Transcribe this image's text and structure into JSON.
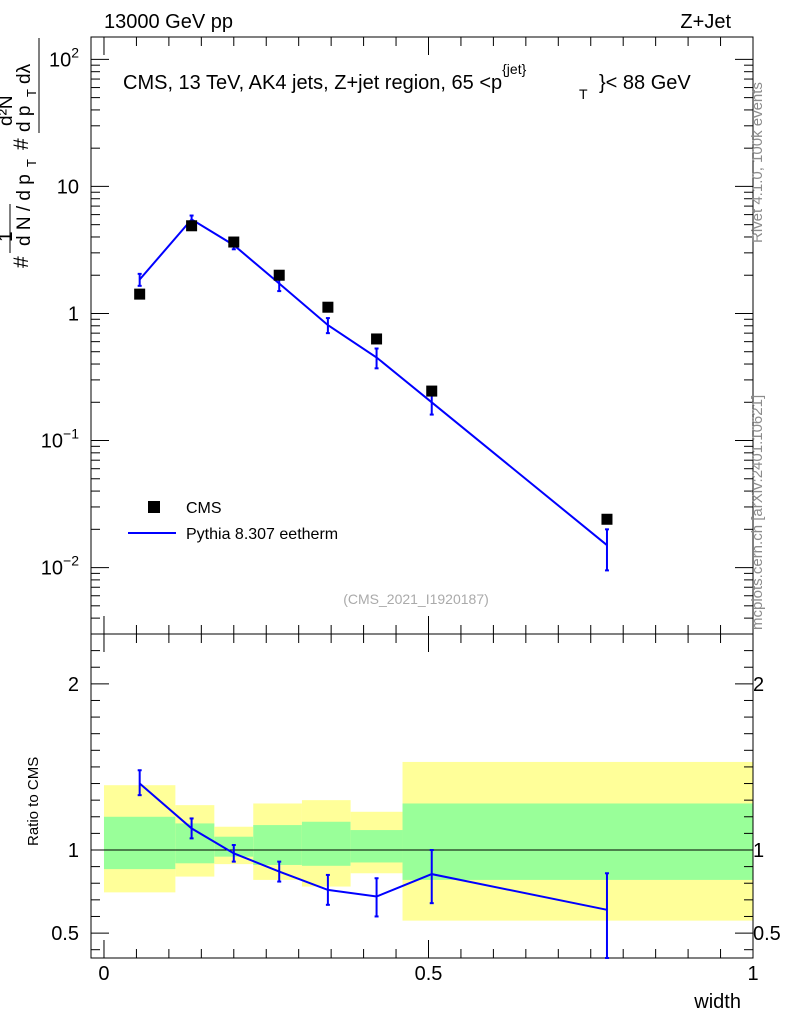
{
  "header": {
    "left": "13000 GeV pp",
    "right": "Z+Jet"
  },
  "side_labels": {
    "rivet": "Rivet 4.1.0,  100k events",
    "mcplots": "mcplots.cern.ch [arXiv:2401.10621]"
  },
  "chart_data": [
    {
      "type": "scatter",
      "title": "CMS, 13 TeV, AK4 jets, Z+jet region, 65 <p_T^{jet}< 88 GeV",
      "title_main": "CMS, 13 TeV, AK4 jets, Z+jet region, 65 <p",
      "title_sup": "{jet}",
      "title_sub": "T",
      "title_tail": "}< 88 GeV",
      "ylabel": "1 / dN/dp_T  d²N / dp_T dλ",
      "yscale": "log",
      "ylim": [
        0.003,
        150
      ],
      "xlim": [
        -0.02,
        1.0
      ],
      "watermark": "(CMS_2021_I1920187)",
      "ytick_labels": [
        {
          "value": 100,
          "base": "10",
          "exp": "2"
        },
        {
          "value": 10,
          "base": "10",
          "exp": ""
        },
        {
          "value": 1,
          "base": "1",
          "exp": ""
        },
        {
          "value": 0.1,
          "base": "10",
          "exp": "−1"
        },
        {
          "value": 0.01,
          "base": "10",
          "exp": "−2"
        }
      ],
      "legend": [
        {
          "name": "CMS",
          "marker": "square",
          "color": "#000000"
        },
        {
          "name": "Pythia 8.307 eetherm",
          "marker": "line",
          "color": "#0000ff"
        }
      ],
      "series": [
        {
          "name": "CMS",
          "x": [
            0.055,
            0.135,
            0.2,
            0.27,
            0.345,
            0.42,
            0.505,
            0.775
          ],
          "y": [
            1.42,
            4.9,
            3.65,
            2.0,
            1.12,
            0.63,
            0.245,
            0.024
          ]
        },
        {
          "name": "Pythia 8.307 eetherm",
          "x": [
            0.055,
            0.135,
            0.2,
            0.27,
            0.345,
            0.42,
            0.505,
            0.775
          ],
          "y": [
            1.85,
            5.5,
            3.45,
            1.72,
            0.81,
            0.45,
            0.2,
            0.015
          ],
          "err_lo": [
            1.65,
            5.1,
            3.2,
            1.5,
            0.7,
            0.37,
            0.16,
            0.0095
          ],
          "err_hi": [
            2.05,
            5.9,
            3.7,
            1.95,
            0.92,
            0.53,
            0.245,
            0.02
          ]
        }
      ]
    },
    {
      "type": "line",
      "ylabel": "Ratio to CMS",
      "xlabel": "width",
      "ylim": [
        0.35,
        2.3
      ],
      "xlim": [
        -0.02,
        1.0
      ],
      "xticks": [
        0,
        0.5,
        1
      ],
      "xtick_labels": [
        "0",
        "0.5",
        "1"
      ],
      "yticks": [
        0.5,
        1,
        2
      ],
      "ytick_labels": [
        "0.5",
        "1",
        "2"
      ],
      "bins": [
        {
          "x0": 0.0,
          "x1": 0.11,
          "yellow": [
            0.745,
            1.39
          ],
          "green": [
            0.885,
            1.2
          ]
        },
        {
          "x0": 0.11,
          "x1": 0.17,
          "yellow": [
            0.84,
            1.27
          ],
          "green": [
            0.92,
            1.16
          ]
        },
        {
          "x0": 0.17,
          "x1": 0.23,
          "yellow": [
            0.915,
            1.14
          ],
          "green": [
            0.96,
            1.08
          ]
        },
        {
          "x0": 0.23,
          "x1": 0.305,
          "yellow": [
            0.82,
            1.28
          ],
          "green": [
            0.91,
            1.15
          ]
        },
        {
          "x0": 0.305,
          "x1": 0.38,
          "yellow": [
            0.78,
            1.3
          ],
          "green": [
            0.905,
            1.17
          ]
        },
        {
          "x0": 0.38,
          "x1": 0.46,
          "yellow": [
            0.86,
            1.23
          ],
          "green": [
            0.925,
            1.12
          ]
        },
        {
          "x0": 0.46,
          "x1": 1.0,
          "yellow": [
            0.575,
            1.53
          ],
          "green": [
            0.82,
            1.28
          ]
        }
      ],
      "series": [
        {
          "name": "Pythia 8.307 eetherm",
          "x": [
            0.055,
            0.135,
            0.2,
            0.27,
            0.345,
            0.42,
            0.505,
            0.775
          ],
          "y": [
            1.4,
            1.13,
            0.98,
            0.87,
            0.76,
            0.72,
            0.855,
            0.64
          ],
          "err_lo": [
            1.33,
            1.07,
            0.93,
            0.81,
            0.67,
            0.6,
            0.68,
            0.35
          ],
          "err_hi": [
            1.48,
            1.19,
            1.03,
            0.93,
            0.85,
            0.83,
            1.0,
            0.86
          ]
        }
      ]
    }
  ]
}
